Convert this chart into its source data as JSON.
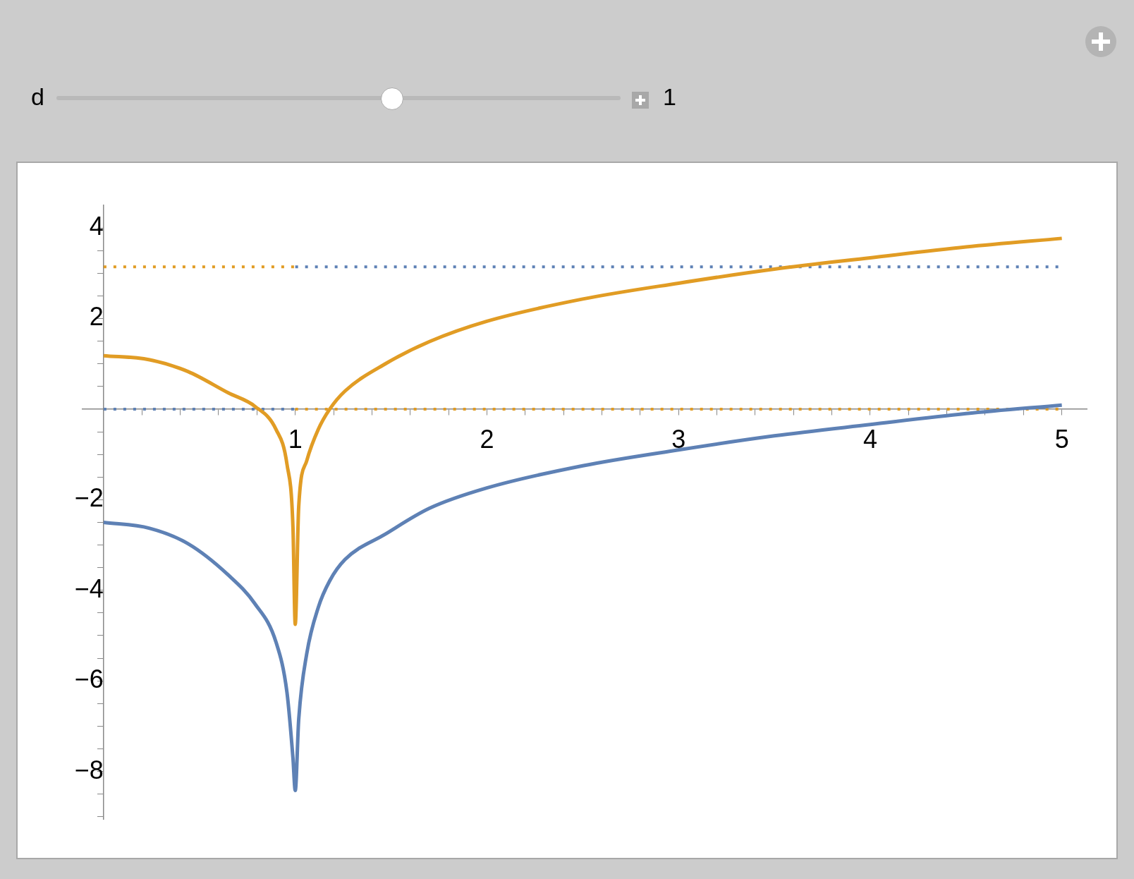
{
  "chart_data": {
    "type": "line",
    "annotations": [
      "d",
      "1"
    ],
    "xlim": [
      -0.11,
      5.13
    ],
    "ylim": [
      -9.05,
      4.5
    ],
    "xticks": [
      {
        "value": 0.2,
        "label": null
      },
      {
        "value": 0.4,
        "label": null
      },
      {
        "value": 0.6,
        "label": null
      },
      {
        "value": 0.8,
        "label": null
      },
      1,
      {
        "value": 1.2,
        "label": null
      },
      {
        "value": 1.4,
        "label": null
      },
      {
        "value": 1.6,
        "label": null
      },
      {
        "value": 1.8,
        "label": null
      },
      2,
      {
        "value": 2.2,
        "label": null
      },
      {
        "value": 2.4,
        "label": null
      },
      {
        "value": 2.6,
        "label": null
      },
      {
        "value": 2.8,
        "label": null
      },
      3,
      {
        "value": 3.2,
        "label": null
      },
      {
        "value": 3.4,
        "label": null
      },
      {
        "value": 3.6,
        "label": null
      },
      {
        "value": 3.8,
        "label": null
      },
      4,
      {
        "value": 4.2,
        "label": null
      },
      {
        "value": 4.4,
        "label": null
      },
      {
        "value": 4.6,
        "label": null
      },
      {
        "value": 4.8,
        "label": null
      },
      5
    ],
    "yticks": [
      {
        "value": -9,
        "label": null
      },
      {
        "value": -8.5,
        "label": null
      },
      {
        "value": -8,
        "label": "−8"
      },
      {
        "value": -7.5,
        "label": null
      },
      {
        "value": -7,
        "label": null
      },
      {
        "value": -6.5,
        "label": null
      },
      {
        "value": -6,
        "label": "−6"
      },
      {
        "value": -5.5,
        "label": null
      },
      {
        "value": -5,
        "label": null
      },
      {
        "value": -4.5,
        "label": null
      },
      {
        "value": -4,
        "label": "−4"
      },
      {
        "value": -3.5,
        "label": null
      },
      {
        "value": -3,
        "label": null
      },
      {
        "value": -2.5,
        "label": null
      },
      {
        "value": -2,
        "label": "−2"
      },
      {
        "value": -1.5,
        "label": null
      },
      {
        "value": -1,
        "label": null
      },
      {
        "value": -0.5,
        "label": null
      },
      {
        "value": 0.5,
        "label": null
      },
      {
        "value": 1,
        "label": null
      },
      {
        "value": 1.5,
        "label": null
      },
      2,
      {
        "value": 2.5,
        "label": null
      },
      {
        "value": 3,
        "label": null
      },
      {
        "value": 3.5,
        "label": null
      },
      4
    ],
    "legend": false,
    "series": [
      {
        "color": "#5e81b5",
        "line_style": "solid",
        "x": [
          0,
          0.24,
          0.44,
          0.65,
          0.79,
          0.9,
          0.957,
          0.988,
          1,
          1.018,
          1.06,
          1.12,
          1.18,
          1.26,
          1.47,
          1.7,
          2,
          2.5,
          3,
          3.5,
          4,
          4.5,
          5
        ],
        "values": [
          -2.5,
          -2.63,
          -2.97,
          -3.66,
          -4.3,
          -5.15,
          -6.26,
          -7.7,
          -8.42,
          -6.86,
          -5.4,
          -4.38,
          -3.79,
          -3.32,
          -2.76,
          -2.19,
          -1.74,
          -1.25,
          -0.9,
          -0.59,
          -0.34,
          -0.1,
          0.09
        ]
      },
      {
        "color": "#e19c24",
        "line_style": "solid",
        "x": [
          0,
          0.24,
          0.44,
          0.65,
          0.79,
          0.9,
          0.957,
          0.988,
          1,
          1.018,
          1.06,
          1.12,
          1.18,
          1.26,
          1.47,
          1.7,
          2,
          2.5,
          3,
          3.5,
          4,
          4.5,
          5
        ],
        "values": [
          1.18,
          1.09,
          0.83,
          0.36,
          0.06,
          -0.45,
          -1.22,
          -2.6,
          -4.75,
          -2.16,
          -1.14,
          -0.45,
          0,
          0.4,
          1.0,
          1.49,
          1.94,
          2.43,
          2.78,
          3.09,
          3.34,
          3.58,
          3.77
        ]
      },
      {
        "color": "#e19c24",
        "line_style": "dotted",
        "x": [
          0,
          1
        ],
        "values": [
          3.14,
          3.14
        ]
      },
      {
        "color": "#e19c24",
        "line_style": "dotted",
        "x": [
          1,
          5
        ],
        "values": [
          0,
          0
        ]
      },
      {
        "color": "#5e81b5",
        "line_style": "dotted",
        "x": [
          0,
          1
        ],
        "values": [
          0,
          0
        ]
      },
      {
        "color": "#5e81b5",
        "line_style": "dotted",
        "x": [
          1,
          5
        ],
        "values": [
          3.14,
          3.14
        ]
      }
    ]
  }
}
